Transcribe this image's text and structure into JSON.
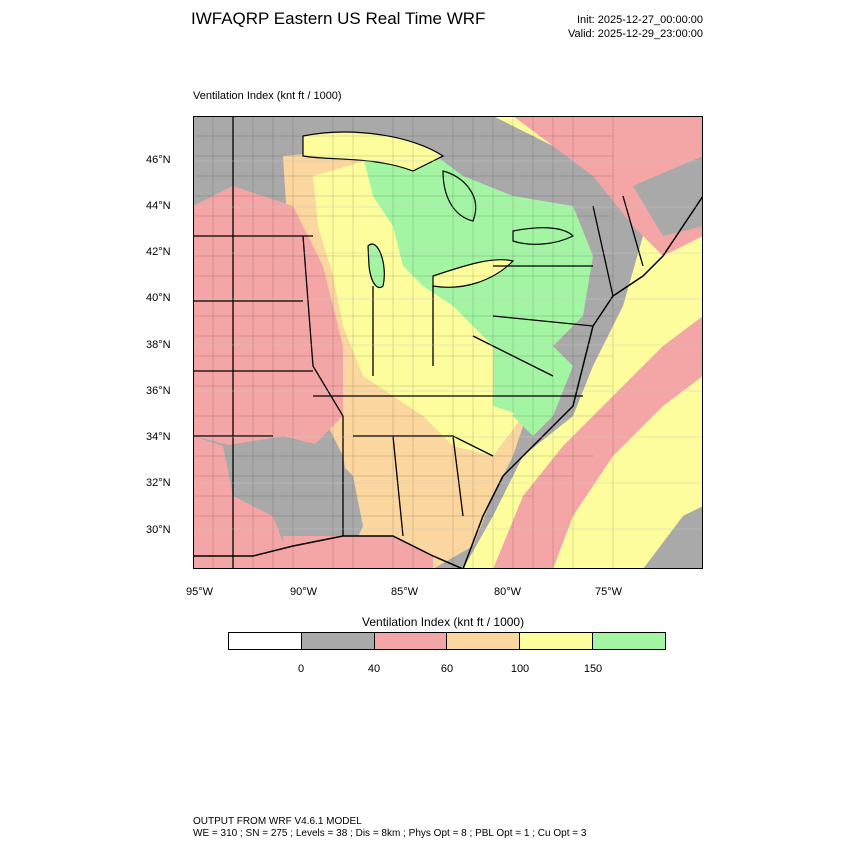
{
  "header": {
    "title": "IWFAQRP Eastern US Real Time WRF",
    "init": "Init: 2025-12-27_00:00:00",
    "valid": "Valid: 2025-12-29_23:00:00"
  },
  "map": {
    "field_label": "Ventilation Index   (knt ft / 1000)",
    "lat_labels": [
      "46°N",
      "44°N",
      "42°N",
      "40°N",
      "38°N",
      "36°N",
      "34°N",
      "32°N",
      "30°N"
    ],
    "lon_labels": [
      "95°W",
      "90°W",
      "85°W",
      "80°W",
      "75°W"
    ]
  },
  "colorbar": {
    "title": "Ventilation Index  (knt ft / 1000)",
    "bins": [
      {
        "color": "#ffffff"
      },
      {
        "color": "#a9a9a9"
      },
      {
        "color": "#f4a6a6"
      },
      {
        "color": "#fbd69e"
      },
      {
        "color": "#fdfd9e"
      },
      {
        "color": "#a3f5a3"
      }
    ],
    "tick_labels": [
      "0",
      "40",
      "60",
      "100",
      "150"
    ]
  },
  "footer": {
    "line1": "OUTPUT FROM WRF V4.6.1 MODEL",
    "line2": "WE = 310 ; SN = 275 ; Levels = 38 ; Dis = 8km ; Phys Opt = 8 ; PBL Opt = 1 ; Cu Opt = 3"
  }
}
